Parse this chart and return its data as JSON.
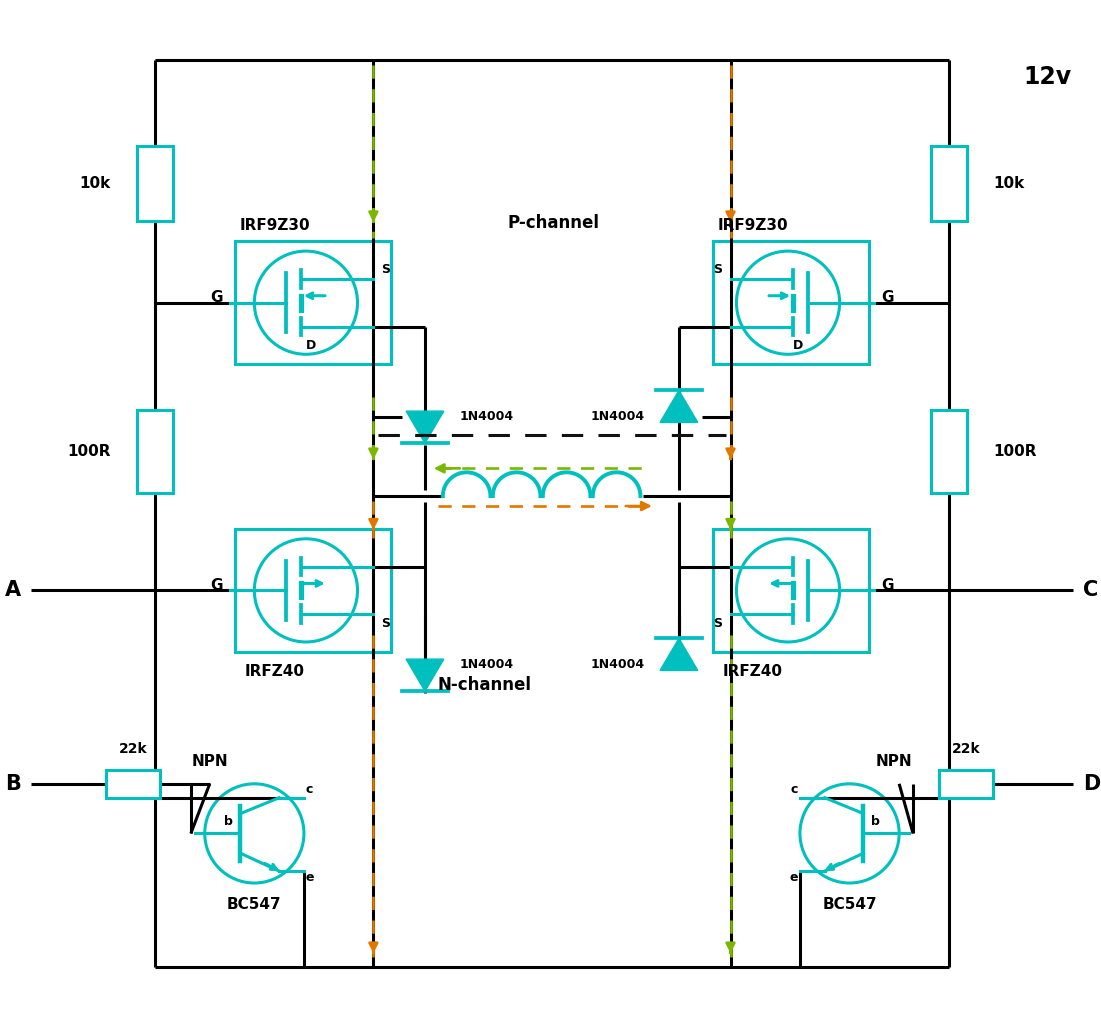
{
  "bg_color": "#ffffff",
  "lc": "c",
  "gc": "#7ab800",
  "oc": "#e07800",
  "bdc": "#111111",
  "title": "12v",
  "lA": "A",
  "lB": "B",
  "lC": "C",
  "lD": "D",
  "lNPN": "NPN",
  "lBC547": "BC547",
  "lIRF9Z30": "IRF9Z30",
  "lIRFZ40": "IRFZ40",
  "l1N4004": "1N4004",
  "l10k": "10k",
  "l100R": "100R",
  "l22k": "22k",
  "lPch": "P-channel",
  "lNch": "N-channel",
  "lG": "G",
  "lS": "S",
  "lD_pin": "D",
  "lb": "b",
  "le": "e"
}
